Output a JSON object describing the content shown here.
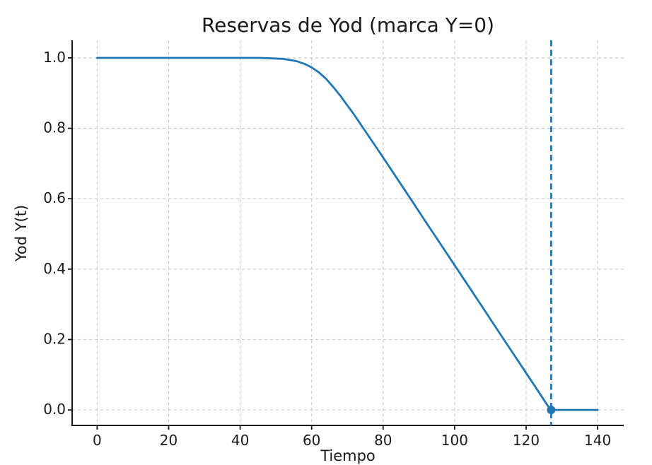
{
  "page": {
    "background": "#ffffff"
  },
  "chart_data": {
    "type": "line",
    "title": "Reservas de Yod (marca Y=0)",
    "xlabel": "Tiempo",
    "ylabel": "Yod Y(t)",
    "xlim": [
      -7,
      147.3
    ],
    "ylim": [
      -0.044,
      1.05
    ],
    "grid": true,
    "legend": false,
    "xticks": [
      {
        "v": 0,
        "label": "0"
      },
      {
        "v": 20,
        "label": "20"
      },
      {
        "v": 40,
        "label": "40"
      },
      {
        "v": 60,
        "label": "60"
      },
      {
        "v": 80,
        "label": "80"
      },
      {
        "v": 100,
        "label": "100"
      },
      {
        "v": 120,
        "label": "120"
      },
      {
        "v": 140,
        "label": "140"
      }
    ],
    "yticks": [
      {
        "v": 0.0,
        "label": "0.0"
      },
      {
        "v": 0.2,
        "label": "0.2"
      },
      {
        "v": 0.4,
        "label": "0.4"
      },
      {
        "v": 0.6,
        "label": "0.6"
      },
      {
        "v": 0.8,
        "label": "0.8"
      },
      {
        "v": 1.0,
        "label": "1.0"
      }
    ],
    "series": [
      {
        "name": "reservas-yod",
        "color": "#1f77b4",
        "line_width": 2.8,
        "x": [
          0,
          10,
          20,
          30,
          40,
          45,
          48,
          50,
          52,
          54,
          56,
          58,
          60,
          62,
          64,
          66,
          68,
          70,
          72,
          74,
          76,
          78,
          80,
          84,
          88,
          92,
          96,
          100,
          104,
          108,
          112,
          116,
          120,
          123,
          125,
          126,
          127,
          128,
          130,
          135,
          140
        ],
        "y": [
          1.0,
          1.0,
          1.0,
          1.0,
          1.0,
          1.0,
          0.999,
          0.998,
          0.997,
          0.994,
          0.99,
          0.983,
          0.973,
          0.959,
          0.941,
          0.918,
          0.893,
          0.865,
          0.837,
          0.807,
          0.777,
          0.747,
          0.717,
          0.656,
          0.595,
          0.533,
          0.472,
          0.411,
          0.35,
          0.289,
          0.227,
          0.166,
          0.105,
          0.059,
          0.028,
          0.013,
          0.0,
          0.0,
          0.0,
          0.0,
          0.0
        ]
      }
    ],
    "annotations": {
      "vline": {
        "x": 127,
        "color": "#1f77b4",
        "style": "dashed"
      },
      "marker": {
        "x": 127,
        "y": 0.0,
        "color": "#1f77b4"
      }
    },
    "colors": {
      "line": "#1f77b4",
      "grid": "#cacaca",
      "spine": "#1a1a1a",
      "text": "#1a1a1a",
      "background": "#ffffff"
    }
  }
}
